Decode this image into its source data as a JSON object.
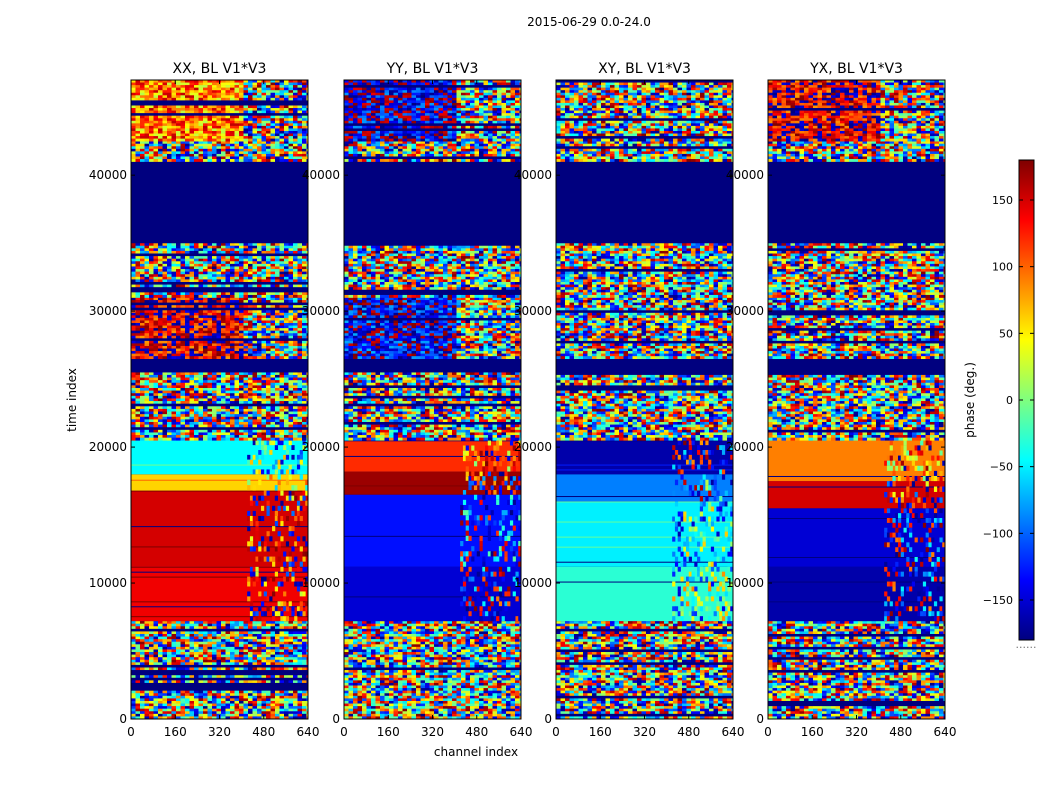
{
  "chart_data": {
    "type": "heatmap",
    "title": "2015-06-29 0.0-24.0",
    "xlabel": "channel index",
    "ylabel": "time index",
    "xlim": [
      0,
      640
    ],
    "ylim": [
      0,
      47000
    ],
    "x_ticks": [
      "0",
      "160",
      "320",
      "480",
      "640"
    ],
    "y_ticks": [
      "0",
      "10000",
      "20000",
      "30000",
      "40000"
    ],
    "colorbar": {
      "label": "phase (deg.)",
      "range": [
        -180,
        180
      ],
      "ticks": [
        "150",
        "100",
        "50",
        "0",
        "−50",
        "−100",
        "−150"
      ],
      "tick_values": [
        150,
        100,
        50,
        0,
        -50,
        -100,
        -150
      ],
      "colormap": "jet",
      "stops": [
        "#00007f",
        "#0000ff",
        "#007fff",
        "#00ffff",
        "#7fff7f",
        "#ffff00",
        "#ff7f00",
        "#ff0000",
        "#7f0000"
      ],
      "footer": "......"
    },
    "panels": [
      {
        "title": "XX, BL V1*V3",
        "bands": [
          {
            "from": 0,
            "to": 7200,
            "kind": "noise"
          },
          {
            "from": 7200,
            "to": 11200,
            "kind": "solid",
            "phase": 140
          },
          {
            "from": 11200,
            "to": 16800,
            "kind": "solid",
            "phase": 150
          },
          {
            "from": 16800,
            "to": 18000,
            "kind": "solid",
            "phase": 60
          },
          {
            "from": 18000,
            "to": 20500,
            "kind": "solid",
            "phase": -45
          },
          {
            "from": 20500,
            "to": 25500,
            "kind": "noise"
          },
          {
            "from": 25500,
            "to": 26500,
            "kind": "flag"
          },
          {
            "from": 26500,
            "to": 31000,
            "kind": "noise",
            "bias": 150
          },
          {
            "from": 31000,
            "to": 35000,
            "kind": "noise"
          },
          {
            "from": 35000,
            "to": 41000,
            "kind": "flag"
          },
          {
            "from": 41000,
            "to": 42500,
            "kind": "noise"
          },
          {
            "from": 42500,
            "to": 47000,
            "kind": "noise",
            "bias": 90
          }
        ]
      },
      {
        "title": "YY, BL V1*V3",
        "bands": [
          {
            "from": 0,
            "to": 7200,
            "kind": "noise"
          },
          {
            "from": 7200,
            "to": 11200,
            "kind": "solid",
            "phase": -150
          },
          {
            "from": 11200,
            "to": 16500,
            "kind": "solid",
            "phase": -130
          },
          {
            "from": 16500,
            "to": 18200,
            "kind": "solid",
            "phase": 170
          },
          {
            "from": 18200,
            "to": 20500,
            "kind": "solid",
            "phase": 120
          },
          {
            "from": 20500,
            "to": 25500,
            "kind": "noise"
          },
          {
            "from": 25500,
            "to": 26500,
            "kind": "flag"
          },
          {
            "from": 26500,
            "to": 31000,
            "kind": "noise",
            "bias": -140
          },
          {
            "from": 31000,
            "to": 35000,
            "kind": "noise"
          },
          {
            "from": 35000,
            "to": 41000,
            "kind": "flag"
          },
          {
            "from": 41000,
            "to": 42500,
            "kind": "noise"
          },
          {
            "from": 42500,
            "to": 47000,
            "kind": "noise",
            "bias": -150
          }
        ]
      },
      {
        "title": "XY, BL V1*V3",
        "bands": [
          {
            "from": 0,
            "to": 7200,
            "kind": "noise"
          },
          {
            "from": 7200,
            "to": 11200,
            "kind": "solid",
            "phase": -30
          },
          {
            "from": 11200,
            "to": 16000,
            "kind": "solid",
            "phase": -50
          },
          {
            "from": 16000,
            "to": 18000,
            "kind": "solid",
            "phase": -90
          },
          {
            "from": 18000,
            "to": 20500,
            "kind": "solid",
            "phase": -165
          },
          {
            "from": 20500,
            "to": 25500,
            "kind": "noise"
          },
          {
            "from": 25500,
            "to": 26500,
            "kind": "flag"
          },
          {
            "from": 26500,
            "to": 31000,
            "kind": "noise"
          },
          {
            "from": 31000,
            "to": 35000,
            "kind": "noise"
          },
          {
            "from": 35000,
            "to": 41000,
            "kind": "flag"
          },
          {
            "from": 41000,
            "to": 42500,
            "kind": "noise"
          },
          {
            "from": 42500,
            "to": 47000,
            "kind": "noise"
          }
        ]
      },
      {
        "title": "YX, BL V1*V3",
        "bands": [
          {
            "from": 0,
            "to": 7200,
            "kind": "noise"
          },
          {
            "from": 7200,
            "to": 11200,
            "kind": "solid",
            "phase": -165
          },
          {
            "from": 11200,
            "to": 15500,
            "kind": "solid",
            "phase": -150
          },
          {
            "from": 15500,
            "to": 17500,
            "kind": "solid",
            "phase": 150
          },
          {
            "from": 17500,
            "to": 20500,
            "kind": "solid",
            "phase": 90
          },
          {
            "from": 20500,
            "to": 25500,
            "kind": "noise"
          },
          {
            "from": 25500,
            "to": 26500,
            "kind": "flag"
          },
          {
            "from": 26500,
            "to": 31000,
            "kind": "noise"
          },
          {
            "from": 31000,
            "to": 35000,
            "kind": "noise"
          },
          {
            "from": 35000,
            "to": 41000,
            "kind": "flag"
          },
          {
            "from": 41000,
            "to": 42500,
            "kind": "noise"
          },
          {
            "from": 42500,
            "to": 47000,
            "kind": "noise",
            "bias": 150
          }
        ]
      }
    ]
  }
}
